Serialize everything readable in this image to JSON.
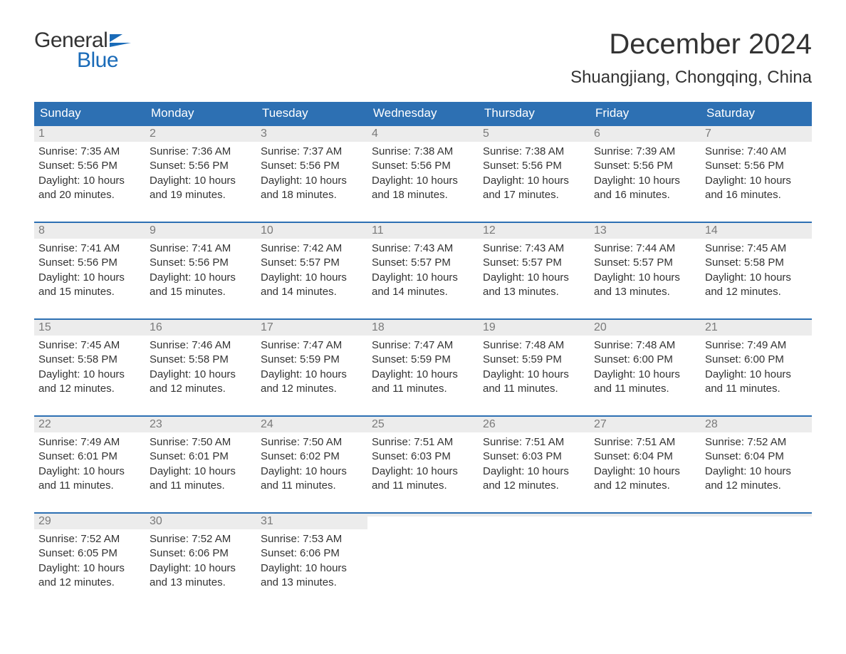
{
  "logo": {
    "word1": "General",
    "word2": "Blue",
    "tri_color": "#1a6bb8"
  },
  "title": "December 2024",
  "location": "Shuangjiang, Chongqing, China",
  "colors": {
    "header_bg": "#2d70b3",
    "header_text": "#ffffff",
    "daynum_bg": "#ececec",
    "daynum_text": "#7a7a7a",
    "body_text": "#333333",
    "rule": "#2d70b3"
  },
  "day_headers": [
    "Sunday",
    "Monday",
    "Tuesday",
    "Wednesday",
    "Thursday",
    "Friday",
    "Saturday"
  ],
  "weeks": [
    [
      {
        "n": "1",
        "sr": "Sunrise: 7:35 AM",
        "ss": "Sunset: 5:56 PM",
        "d1": "Daylight: 10 hours",
        "d2": "and 20 minutes."
      },
      {
        "n": "2",
        "sr": "Sunrise: 7:36 AM",
        "ss": "Sunset: 5:56 PM",
        "d1": "Daylight: 10 hours",
        "d2": "and 19 minutes."
      },
      {
        "n": "3",
        "sr": "Sunrise: 7:37 AM",
        "ss": "Sunset: 5:56 PM",
        "d1": "Daylight: 10 hours",
        "d2": "and 18 minutes."
      },
      {
        "n": "4",
        "sr": "Sunrise: 7:38 AM",
        "ss": "Sunset: 5:56 PM",
        "d1": "Daylight: 10 hours",
        "d2": "and 18 minutes."
      },
      {
        "n": "5",
        "sr": "Sunrise: 7:38 AM",
        "ss": "Sunset: 5:56 PM",
        "d1": "Daylight: 10 hours",
        "d2": "and 17 minutes."
      },
      {
        "n": "6",
        "sr": "Sunrise: 7:39 AM",
        "ss": "Sunset: 5:56 PM",
        "d1": "Daylight: 10 hours",
        "d2": "and 16 minutes."
      },
      {
        "n": "7",
        "sr": "Sunrise: 7:40 AM",
        "ss": "Sunset: 5:56 PM",
        "d1": "Daylight: 10 hours",
        "d2": "and 16 minutes."
      }
    ],
    [
      {
        "n": "8",
        "sr": "Sunrise: 7:41 AM",
        "ss": "Sunset: 5:56 PM",
        "d1": "Daylight: 10 hours",
        "d2": "and 15 minutes."
      },
      {
        "n": "9",
        "sr": "Sunrise: 7:41 AM",
        "ss": "Sunset: 5:56 PM",
        "d1": "Daylight: 10 hours",
        "d2": "and 15 minutes."
      },
      {
        "n": "10",
        "sr": "Sunrise: 7:42 AM",
        "ss": "Sunset: 5:57 PM",
        "d1": "Daylight: 10 hours",
        "d2": "and 14 minutes."
      },
      {
        "n": "11",
        "sr": "Sunrise: 7:43 AM",
        "ss": "Sunset: 5:57 PM",
        "d1": "Daylight: 10 hours",
        "d2": "and 14 minutes."
      },
      {
        "n": "12",
        "sr": "Sunrise: 7:43 AM",
        "ss": "Sunset: 5:57 PM",
        "d1": "Daylight: 10 hours",
        "d2": "and 13 minutes."
      },
      {
        "n": "13",
        "sr": "Sunrise: 7:44 AM",
        "ss": "Sunset: 5:57 PM",
        "d1": "Daylight: 10 hours",
        "d2": "and 13 minutes."
      },
      {
        "n": "14",
        "sr": "Sunrise: 7:45 AM",
        "ss": "Sunset: 5:58 PM",
        "d1": "Daylight: 10 hours",
        "d2": "and 12 minutes."
      }
    ],
    [
      {
        "n": "15",
        "sr": "Sunrise: 7:45 AM",
        "ss": "Sunset: 5:58 PM",
        "d1": "Daylight: 10 hours",
        "d2": "and 12 minutes."
      },
      {
        "n": "16",
        "sr": "Sunrise: 7:46 AM",
        "ss": "Sunset: 5:58 PM",
        "d1": "Daylight: 10 hours",
        "d2": "and 12 minutes."
      },
      {
        "n": "17",
        "sr": "Sunrise: 7:47 AM",
        "ss": "Sunset: 5:59 PM",
        "d1": "Daylight: 10 hours",
        "d2": "and 12 minutes."
      },
      {
        "n": "18",
        "sr": "Sunrise: 7:47 AM",
        "ss": "Sunset: 5:59 PM",
        "d1": "Daylight: 10 hours",
        "d2": "and 11 minutes."
      },
      {
        "n": "19",
        "sr": "Sunrise: 7:48 AM",
        "ss": "Sunset: 5:59 PM",
        "d1": "Daylight: 10 hours",
        "d2": "and 11 minutes."
      },
      {
        "n": "20",
        "sr": "Sunrise: 7:48 AM",
        "ss": "Sunset: 6:00 PM",
        "d1": "Daylight: 10 hours",
        "d2": "and 11 minutes."
      },
      {
        "n": "21",
        "sr": "Sunrise: 7:49 AM",
        "ss": "Sunset: 6:00 PM",
        "d1": "Daylight: 10 hours",
        "d2": "and 11 minutes."
      }
    ],
    [
      {
        "n": "22",
        "sr": "Sunrise: 7:49 AM",
        "ss": "Sunset: 6:01 PM",
        "d1": "Daylight: 10 hours",
        "d2": "and 11 minutes."
      },
      {
        "n": "23",
        "sr": "Sunrise: 7:50 AM",
        "ss": "Sunset: 6:01 PM",
        "d1": "Daylight: 10 hours",
        "d2": "and 11 minutes."
      },
      {
        "n": "24",
        "sr": "Sunrise: 7:50 AM",
        "ss": "Sunset: 6:02 PM",
        "d1": "Daylight: 10 hours",
        "d2": "and 11 minutes."
      },
      {
        "n": "25",
        "sr": "Sunrise: 7:51 AM",
        "ss": "Sunset: 6:03 PM",
        "d1": "Daylight: 10 hours",
        "d2": "and 11 minutes."
      },
      {
        "n": "26",
        "sr": "Sunrise: 7:51 AM",
        "ss": "Sunset: 6:03 PM",
        "d1": "Daylight: 10 hours",
        "d2": "and 12 minutes."
      },
      {
        "n": "27",
        "sr": "Sunrise: 7:51 AM",
        "ss": "Sunset: 6:04 PM",
        "d1": "Daylight: 10 hours",
        "d2": "and 12 minutes."
      },
      {
        "n": "28",
        "sr": "Sunrise: 7:52 AM",
        "ss": "Sunset: 6:04 PM",
        "d1": "Daylight: 10 hours",
        "d2": "and 12 minutes."
      }
    ],
    [
      {
        "n": "29",
        "sr": "Sunrise: 7:52 AM",
        "ss": "Sunset: 6:05 PM",
        "d1": "Daylight: 10 hours",
        "d2": "and 12 minutes."
      },
      {
        "n": "30",
        "sr": "Sunrise: 7:52 AM",
        "ss": "Sunset: 6:06 PM",
        "d1": "Daylight: 10 hours",
        "d2": "and 13 minutes."
      },
      {
        "n": "31",
        "sr": "Sunrise: 7:53 AM",
        "ss": "Sunset: 6:06 PM",
        "d1": "Daylight: 10 hours",
        "d2": "and 13 minutes."
      },
      {
        "n": "",
        "sr": "",
        "ss": "",
        "d1": "",
        "d2": ""
      },
      {
        "n": "",
        "sr": "",
        "ss": "",
        "d1": "",
        "d2": ""
      },
      {
        "n": "",
        "sr": "",
        "ss": "",
        "d1": "",
        "d2": ""
      },
      {
        "n": "",
        "sr": "",
        "ss": "",
        "d1": "",
        "d2": ""
      }
    ]
  ]
}
